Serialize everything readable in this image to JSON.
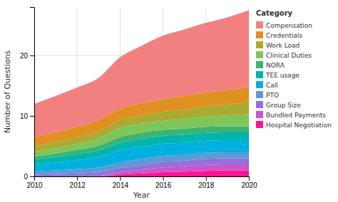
{
  "chart_data": {
    "type": "area",
    "stacked": true,
    "xlabel": "Year",
    "ylabel": "Number of Questions",
    "x": [
      2010,
      2011,
      2012,
      2013,
      2014,
      2015,
      2016,
      2017,
      2018,
      2019,
      2020
    ],
    "series": [
      {
        "name": "Hospital Negotiation",
        "color": "#FF1493",
        "values": [
          0.0,
          0.0,
          0.0,
          0.0,
          0.3,
          0.5,
          0.7,
          0.8,
          0.9,
          1.0,
          1.0
        ]
      },
      {
        "name": "Bundled Payments",
        "color": "#CC55CC",
        "values": [
          0.0,
          0.0,
          0.0,
          0.1,
          0.4,
          0.6,
          0.8,
          0.9,
          1.0,
          1.0,
          1.0
        ]
      },
      {
        "name": "Group Size",
        "color": "#9370DB",
        "values": [
          0.3,
          0.4,
          0.5,
          0.6,
          0.7,
          0.8,
          0.9,
          0.9,
          1.0,
          1.0,
          1.0
        ]
      },
      {
        "name": "PTO",
        "color": "#5B9BD5",
        "values": [
          0.5,
          0.6,
          0.7,
          0.8,
          0.9,
          1.0,
          1.0,
          1.0,
          1.0,
          1.0,
          1.0
        ]
      },
      {
        "name": "Call",
        "color": "#00B0E0",
        "values": [
          1.2,
          1.3,
          1.5,
          1.7,
          2.0,
          2.0,
          2.0,
          2.0,
          2.0,
          2.0,
          2.0
        ]
      },
      {
        "name": "TEE usage",
        "color": "#00B5AD",
        "values": [
          0.8,
          0.9,
          1.0,
          1.1,
          1.2,
          1.3,
          1.3,
          1.3,
          1.3,
          1.3,
          1.3
        ]
      },
      {
        "name": "NORA",
        "color": "#3CB371",
        "values": [
          0.5,
          0.6,
          0.7,
          0.8,
          1.0,
          1.0,
          1.0,
          1.0,
          1.0,
          1.0,
          1.0
        ]
      },
      {
        "name": "Clinical Duties",
        "color": "#7DC75A",
        "values": [
          0.8,
          0.9,
          1.0,
          1.2,
          1.5,
          1.5,
          1.5,
          1.6,
          1.7,
          1.8,
          2.0
        ]
      },
      {
        "name": "Work Load",
        "color": "#AAAA30",
        "values": [
          0.9,
          1.0,
          1.1,
          1.2,
          1.3,
          1.4,
          1.5,
          1.6,
          1.7,
          1.8,
          2.0
        ]
      },
      {
        "name": "Credentials",
        "color": "#E09020",
        "values": [
          1.5,
          1.6,
          1.7,
          1.8,
          1.9,
          2.0,
          2.1,
          2.2,
          2.3,
          2.4,
          2.5
        ]
      },
      {
        "name": "Compensation",
        "color": "#F28080",
        "values": [
          5.5,
          6.0,
          6.5,
          7.0,
          8.5,
          9.5,
          10.5,
          11.0,
          11.5,
          12.0,
          12.7
        ]
      }
    ],
    "xlim": [
      2010,
      2020
    ],
    "xticks": [
      2010,
      2012,
      2014,
      2016,
      2018,
      2020
    ],
    "ylim": [
      0,
      28
    ],
    "yticks": [
      0,
      10,
      20
    ],
    "grid": true,
    "legend": "right",
    "legend_title": "Category"
  }
}
